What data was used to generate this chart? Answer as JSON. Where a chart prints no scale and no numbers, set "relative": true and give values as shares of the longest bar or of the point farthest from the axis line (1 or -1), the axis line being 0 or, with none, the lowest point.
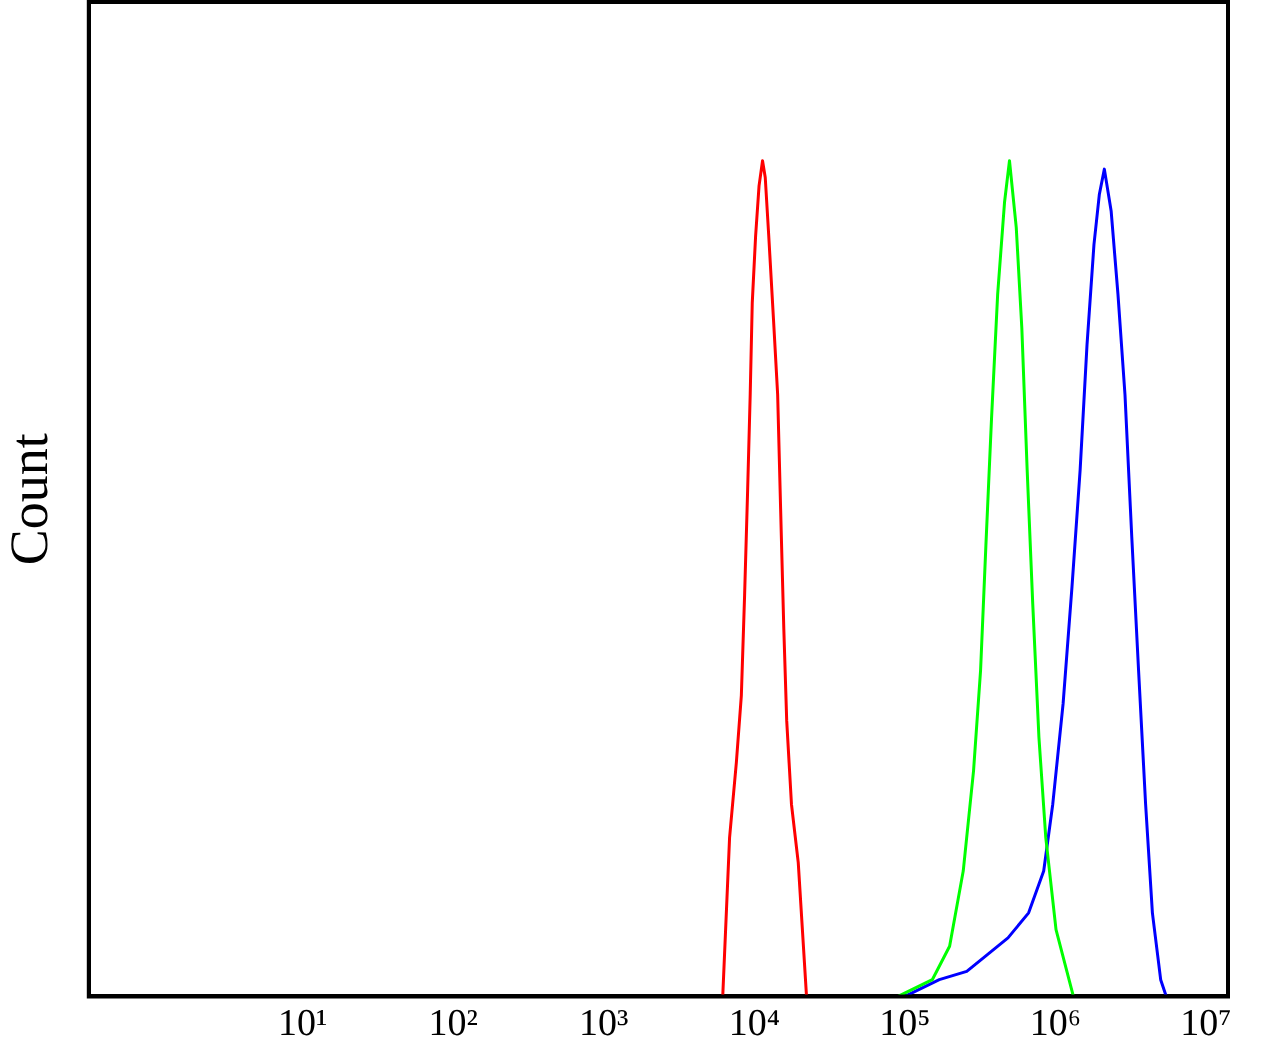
{
  "chart_data": {
    "type": "line",
    "ylabel": "Count",
    "relative": true,
    "log": "x",
    "grid": false,
    "legend": false,
    "marker": "none",
    "line_style": "solid",
    "xlim": [
      0.38,
      14000000
    ],
    "xticks": [
      {
        "value": 10,
        "label": "10¹"
      },
      {
        "value": 100,
        "label": "10²"
      },
      {
        "value": 1000,
        "label": "10³"
      },
      {
        "value": 10000,
        "label": "10⁴"
      },
      {
        "value": 100000,
        "label": "10⁵"
      },
      {
        "value": 1000000,
        "label": "10⁶"
      },
      {
        "value": 10000000,
        "label": "10⁷"
      }
    ],
    "series": [
      {
        "color": "#ff0000",
        "x": [
          6170,
          6850,
          7600,
          8200,
          8620,
          9010,
          9390,
          9690,
          10200,
          10750,
          11340,
          11820,
          12470,
          13410,
          14290,
          15070,
          15700,
          16410,
          17650,
          19580,
          22220
        ],
        "values": [
          0,
          0.19,
          0.28,
          0.36,
          0.48,
          0.6,
          0.72,
          0.83,
          0.91,
          0.97,
          1.0,
          0.98,
          0.91,
          0.81,
          0.72,
          0.56,
          0.44,
          0.33,
          0.23,
          0.16,
          0
        ]
      },
      {
        "color": "#00ff00",
        "x": [
          90100,
          152100,
          198200,
          244100,
          285800,
          318200,
          345300,
          375900,
          413200,
          458900,
          495200,
          549300,
          598000,
          649000,
          706600,
          776900,
          862700,
          1009000,
          1316000
        ],
        "values": [
          0,
          0.02,
          0.06,
          0.15,
          0.27,
          0.39,
          0.54,
          0.69,
          0.84,
          0.95,
          1.0,
          0.92,
          0.8,
          0.63,
          0.47,
          0.31,
          0.19,
          0.08,
          0
        ]
      },
      {
        "color": "#0000ff",
        "x": [
          100000,
          169300,
          257600,
          353200,
          484000,
          663700,
          835600,
          959800,
          1124000,
          1288000,
          1459000,
          1621000,
          1803000,
          1958000,
          2113000,
          2344000,
          2602000,
          2897000,
          3213000,
          3566000,
          3971000,
          4405000,
          5000000,
          5448000
        ],
        "values": [
          0,
          0.02,
          0.03,
          0.05,
          0.07,
          0.1,
          0.15,
          0.23,
          0.35,
          0.49,
          0.63,
          0.78,
          0.9,
          0.96,
          0.99,
          0.94,
          0.84,
          0.72,
          0.55,
          0.39,
          0.23,
          0.1,
          0.02,
          0
        ]
      }
    ]
  }
}
